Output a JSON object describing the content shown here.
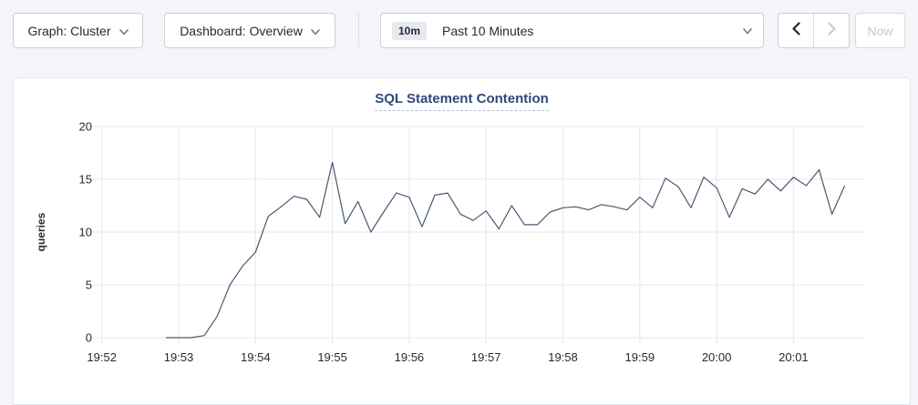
{
  "toolbar": {
    "graph_dropdown_label": "Graph: Cluster",
    "dashboard_dropdown_label": "Dashboard: Overview",
    "time_window_badge": "10m",
    "time_window_label": "Past 10 Minutes",
    "now_button_label": "Now"
  },
  "icons": {
    "dropdown_chevron": "chevron-down",
    "time_prev": "chevron-left",
    "time_next": "chevron-right"
  },
  "colors": {
    "line": "#475872",
    "title": "#2c4a7c",
    "grid": "#e7e7e7",
    "axis_text": "#242b35"
  },
  "chart_data": {
    "type": "line",
    "title": "SQL Statement Contention",
    "xlabel": "",
    "ylabel": "queries",
    "ylim": [
      0,
      20
    ],
    "y_ticks": [
      0,
      5,
      10,
      15,
      20
    ],
    "x_ticks": [
      "19:52",
      "19:53",
      "19:54",
      "19:55",
      "19:56",
      "19:57",
      "19:58",
      "19:59",
      "20:00",
      "20:01"
    ],
    "grid": true,
    "legend_position": "none",
    "x_start": "19:52:50",
    "x_interval_sec": 10,
    "series": [
      {
        "name": "queries",
        "values": [
          0,
          0,
          0,
          0.2,
          2,
          5,
          6.8,
          8.1,
          11.5,
          12.4,
          13.4,
          13.1,
          11.4,
          16.6,
          10.8,
          12.9,
          10,
          11.9,
          13.7,
          13.3,
          10.5,
          13.5,
          13.7,
          11.7,
          11.1,
          12,
          10.3,
          12.5,
          10.7,
          10.7,
          11.9,
          12.3,
          12.4,
          12.1,
          12.6,
          12.4,
          12.1,
          13.3,
          12.3,
          15.1,
          14.3,
          12.3,
          15.2,
          14.2,
          11.4,
          14.1,
          13.6,
          15,
          13.9,
          15.2,
          14.4,
          15.9,
          11.7,
          14.4
        ]
      }
    ]
  }
}
